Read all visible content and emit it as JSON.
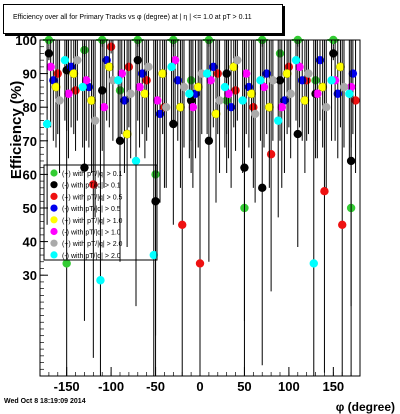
{
  "title": "Efficiency over all for Primary Tracks vs φ (degree) at | η | <= 1.0 at pT > 0.11",
  "timestamp": "Wed Oct  8 18:19:09 2014",
  "colors": {
    "green": "#33cc33",
    "black": "#000000",
    "red": "#ee1111",
    "blue": "#0000ee",
    "yellow": "#ffff00",
    "magenta": "#ff00ff",
    "gray": "#aaaaaa",
    "cyan": "#00ffff"
  },
  "chart_data": {
    "type": "scatter",
    "title": "Efficiency over all for Primary Tracks vs φ (degree) at | η | <= 1.0 at pT > 0.11",
    "xlabel": "φ (degree)",
    "ylabel": "Efficiency (%)",
    "xlim": [
      -180,
      180
    ],
    "ylim": [
      0,
      100
    ],
    "x_ticks": [
      -150,
      -100,
      -50,
      0,
      50,
      100,
      150
    ],
    "y_ticks": [
      30,
      40,
      50,
      60,
      70,
      80,
      90,
      100
    ],
    "grid": false,
    "legend_position": "left-middle",
    "series": [
      {
        "name": "(+) with pT/|q| > 0.1",
        "color": "green",
        "x": [
          -170,
          -150,
          -130,
          -110,
          -90,
          -70,
          -50,
          -30,
          -10,
          10,
          30,
          50,
          70,
          90,
          110,
          130,
          150,
          170
        ],
        "y": [
          100,
          33.5,
          97,
          100,
          85,
          100,
          60,
          100,
          88,
          100,
          82,
          50,
          100,
          96,
          100,
          88,
          100,
          50
        ]
      },
      {
        "name": "(-) with pT/|q| > 0.1",
        "color": "black",
        "x": [
          -170,
          -150,
          -130,
          -110,
          -90,
          -70,
          -50,
          -30,
          -10,
          10,
          30,
          50,
          70,
          90,
          110,
          130,
          150,
          170
        ],
        "y": [
          96,
          91,
          62,
          85,
          70,
          94,
          52,
          75,
          82,
          70,
          90,
          62,
          56,
          88,
          72,
          84,
          96,
          64
        ]
      },
      {
        "name": "(+) with pT/|q| > 0.5",
        "color": "red",
        "x": [
          -160,
          -140,
          -120,
          -100,
          -80,
          -60,
          -40,
          -20,
          0,
          20,
          40,
          60,
          80,
          100,
          120,
          140,
          160,
          175
        ],
        "y": [
          90,
          85,
          57,
          98,
          92,
          88,
          80,
          45,
          33.5,
          90,
          85,
          80,
          66,
          92,
          88,
          55,
          45,
          82
        ]
      },
      {
        "name": "(-) with pT/|q| > 0.5",
        "color": "blue",
        "x": [
          -165,
          -145,
          -125,
          -105,
          -85,
          -65,
          -45,
          -25,
          -5,
          15,
          35,
          55,
          75,
          95,
          115,
          135,
          155,
          172
        ],
        "y": [
          88,
          92,
          86,
          94,
          82,
          90,
          78,
          88,
          84,
          92,
          80,
          86,
          90,
          82,
          88,
          94,
          84,
          90
        ]
      },
      {
        "name": "(+) with pT/|q| > 1.0",
        "color": "yellow",
        "x": [
          -162,
          -142,
          -122,
          -102,
          -82,
          -62,
          -42,
          -22,
          -2,
          18,
          38,
          58,
          78,
          98,
          118,
          138,
          158
        ],
        "y": [
          86,
          90,
          82,
          92,
          72,
          84,
          90,
          80,
          86,
          78,
          92,
          84,
          80,
          90,
          82,
          86,
          92
        ]
      },
      {
        "name": "(-) with pT/|q| > 1.0",
        "color": "magenta",
        "x": [
          -168,
          -148,
          -128,
          -108,
          -88,
          -68,
          -48,
          -28,
          -8,
          12,
          32,
          52,
          72,
          92,
          112,
          132,
          152,
          170
        ],
        "y": [
          92,
          84,
          88,
          80,
          90,
          86,
          82,
          94,
          80,
          88,
          84,
          90,
          86,
          80,
          92,
          84,
          88,
          86
        ]
      },
      {
        "name": "(+) with pT/|q| > 2.0",
        "color": "gray",
        "x": [
          -158,
          -138,
          -118,
          -98,
          -78,
          -58,
          -38,
          -18,
          2,
          22,
          42,
          62,
          82,
          102,
          122,
          142,
          162
        ],
        "y": [
          82,
          94,
          76,
          88,
          84,
          92,
          80,
          86,
          90,
          82,
          94,
          78,
          88,
          84,
          90,
          80,
          86
        ]
      },
      {
        "name": "(-) with pT/|q| > 2.0",
        "color": "cyan",
        "x": [
          -172,
          -152,
          -132,
          -112,
          -92,
          -72,
          -52,
          -32,
          -12,
          8,
          28,
          48,
          68,
          88,
          108,
          128,
          148,
          168
        ],
        "y": [
          75,
          94,
          86,
          28.5,
          88,
          64,
          36,
          92,
          84,
          90,
          86,
          82,
          88,
          76,
          94,
          33.5,
          88,
          84
        ]
      }
    ]
  }
}
